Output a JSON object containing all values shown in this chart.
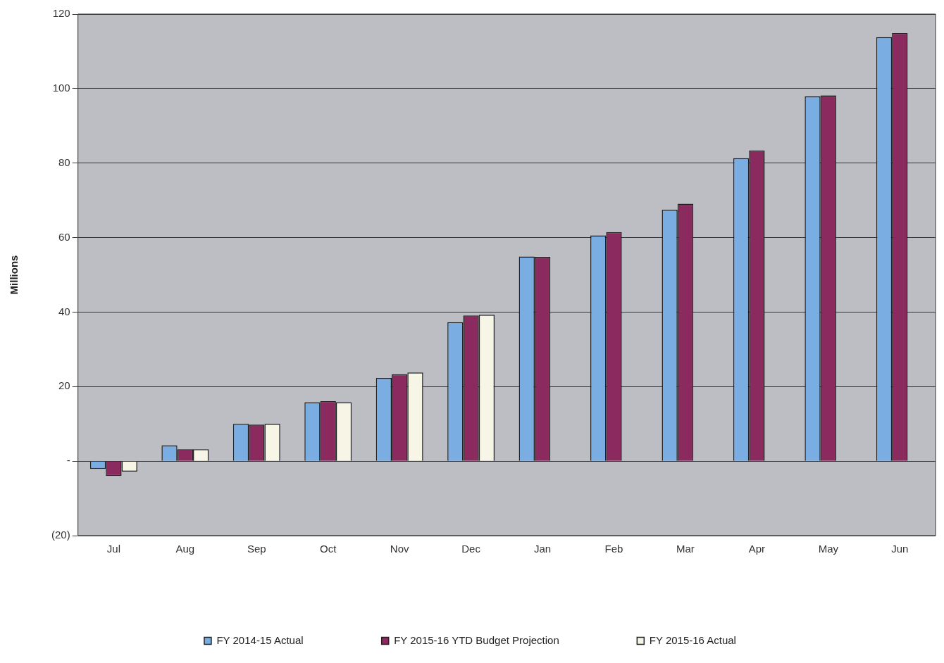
{
  "chart_data": {
    "type": "bar",
    "ylabel": "Millions",
    "categories": [
      "Jul",
      "Aug",
      "Sep",
      "Oct",
      "Nov",
      "Dec",
      "Jan",
      "Feb",
      "Mar",
      "Apr",
      "May",
      "Jun"
    ],
    "series": [
      {
        "name": "FY 2014-15 Actual",
        "color": "#7aaee3",
        "values": [
          -2.1,
          4.2,
          10,
          15.8,
          22.3,
          37.3,
          54.9,
          60.6,
          67.5,
          81.3,
          97.9,
          113.8
        ]
      },
      {
        "name": "FY 2015-16 YTD Budget Projection",
        "color": "#8b2a5e",
        "values": [
          -4,
          3.2,
          9.8,
          16.1,
          23.3,
          39.1,
          54.8,
          61.5,
          69.1,
          83.4,
          98.2,
          114.9
        ]
      },
      {
        "name": "FY 2015-16 Actual",
        "color": "#f7f5e6",
        "values": [
          -2.8,
          3.2,
          10,
          15.8,
          23.8,
          39.3,
          null,
          null,
          null,
          null,
          null,
          null
        ]
      }
    ],
    "ylim": [
      -20,
      120
    ],
    "yticks": [
      {
        "value": -20,
        "label": "(20)"
      },
      {
        "value": 0,
        "label": "-"
      },
      20,
      40,
      60,
      80,
      100,
      120
    ],
    "grid": "y",
    "legend": "bottom"
  }
}
